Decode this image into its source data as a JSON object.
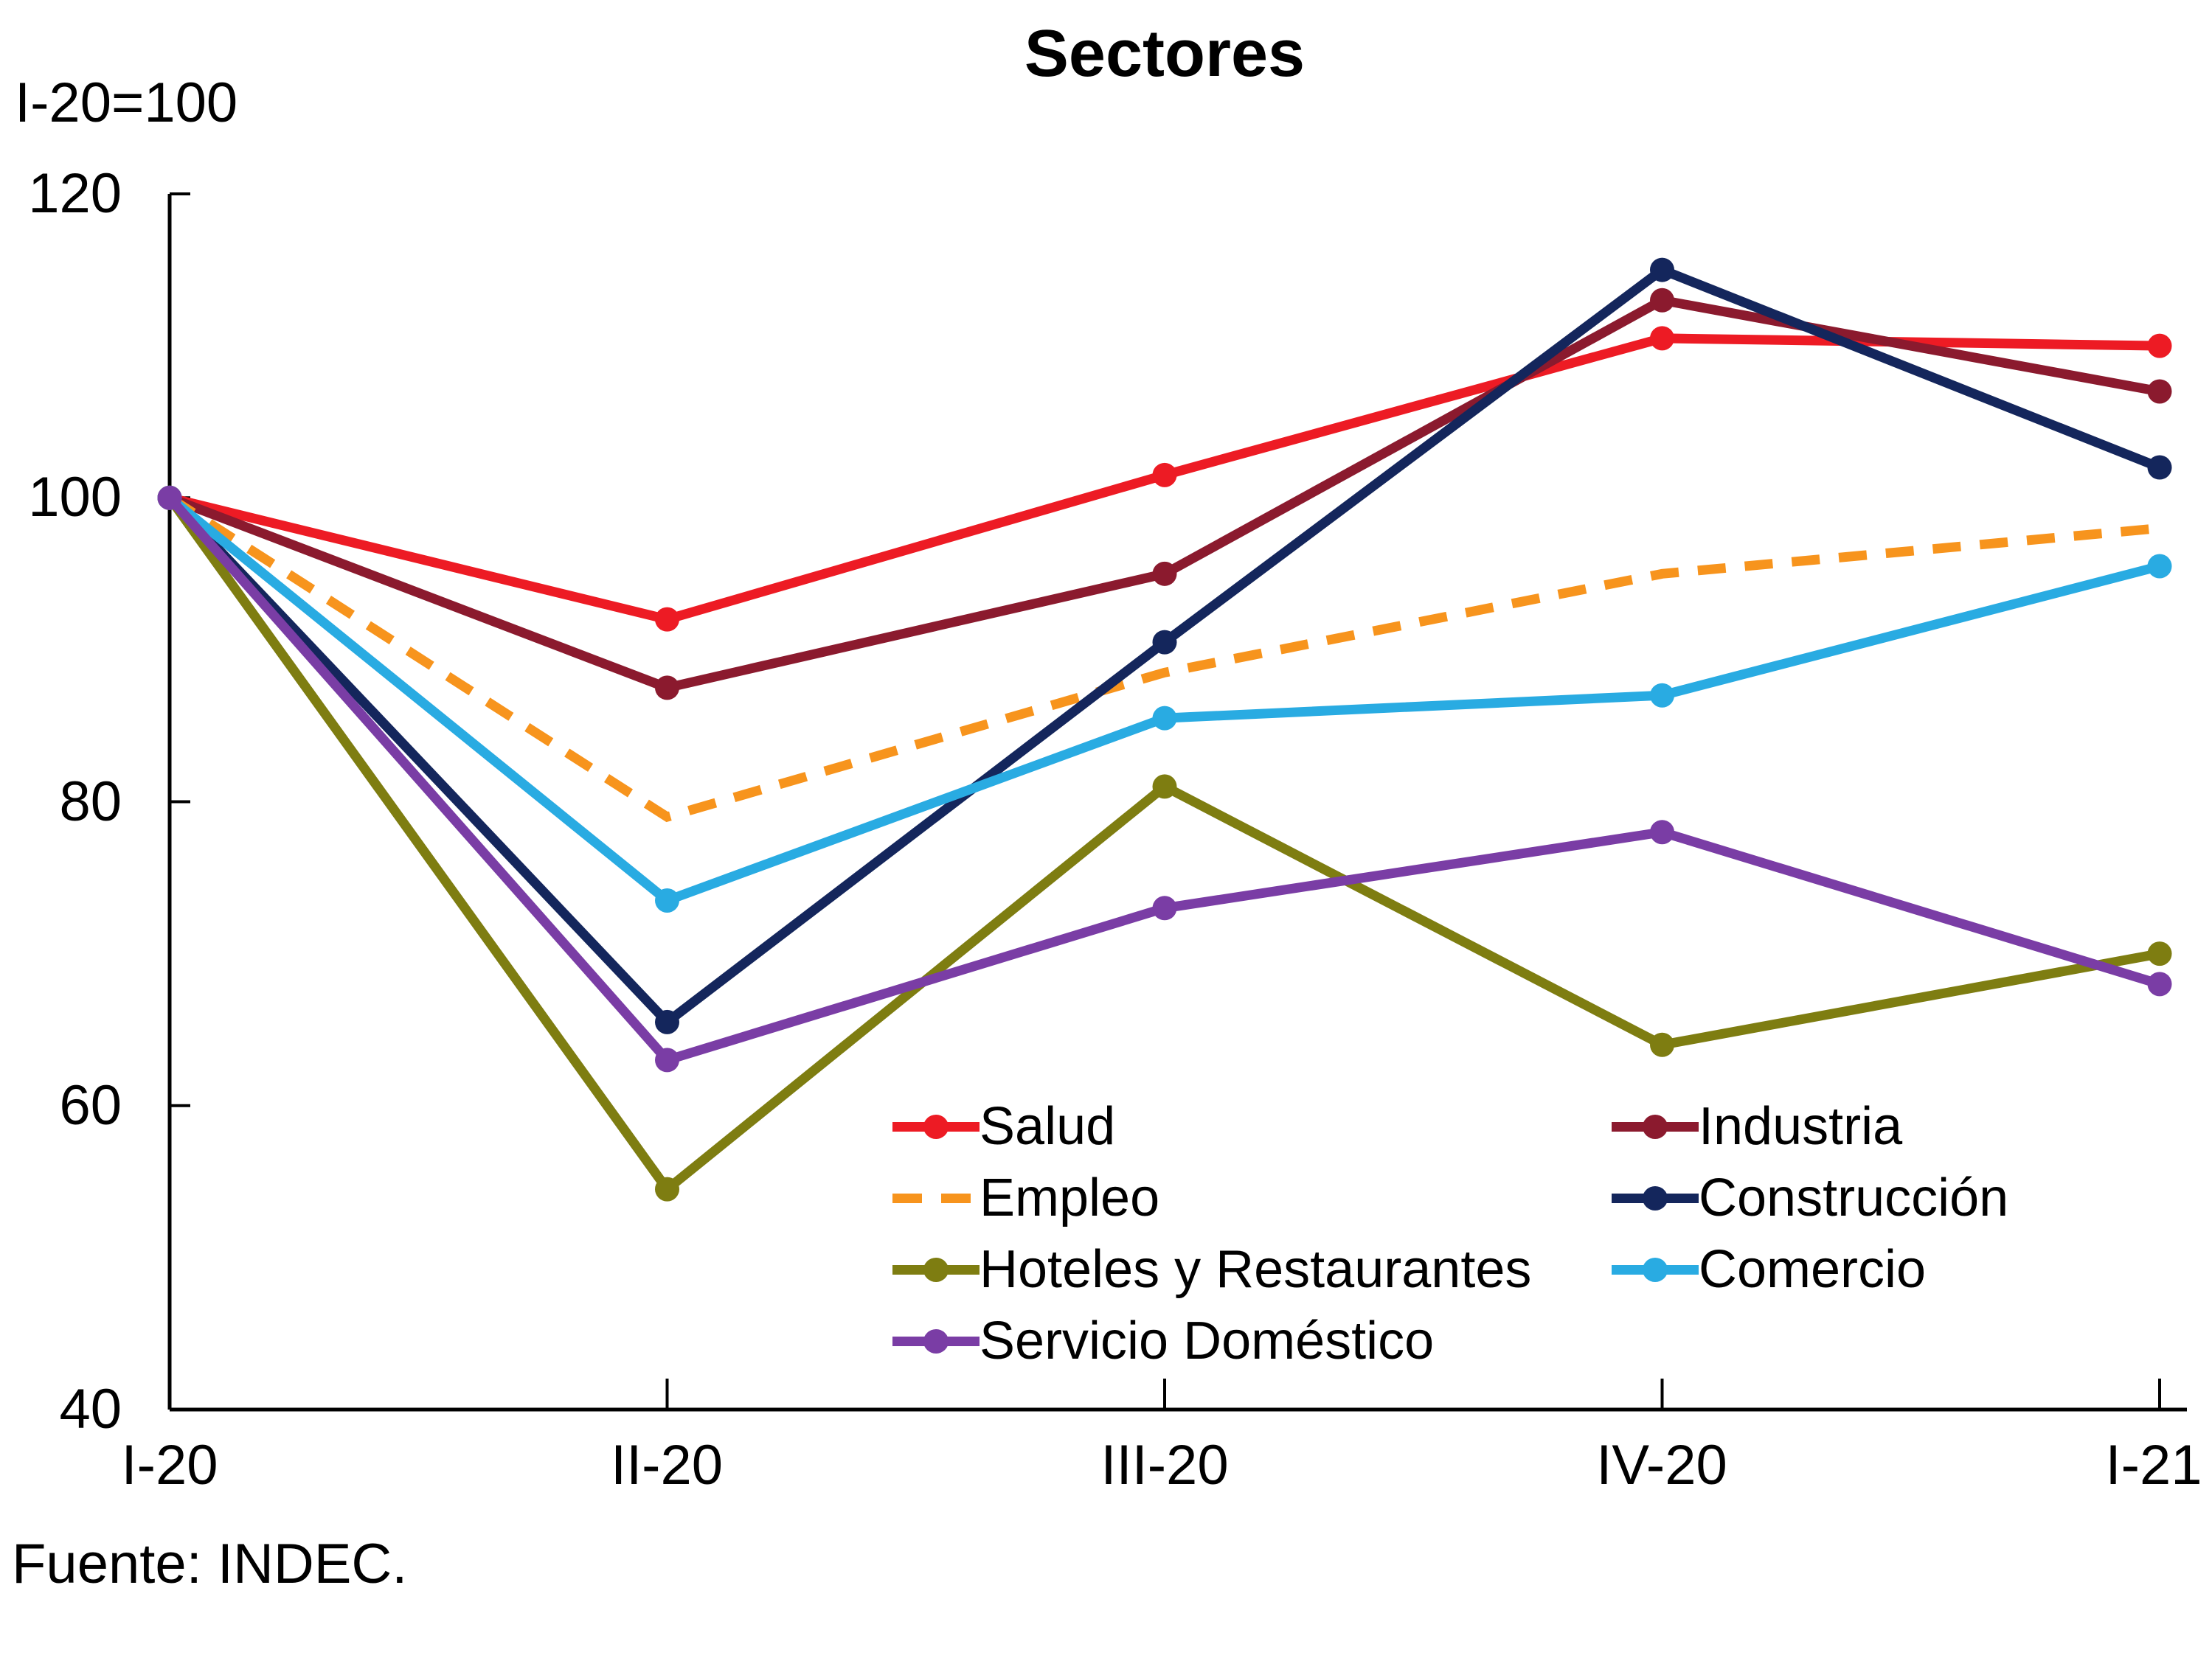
{
  "header": {
    "title": "Sectores",
    "subtitle": "I-20=100"
  },
  "source": "Fuente: INDEC.",
  "chart_data": {
    "type": "line",
    "title": "Sectores",
    "subtitle": "I-20=100",
    "categories": [
      "I-20",
      "II-20",
      "III-20",
      "IV-20",
      "I-21"
    ],
    "series": [
      {
        "name": "Salud",
        "color": "#ED1B24",
        "dashed": false,
        "values": [
          100,
          92,
          101.5,
          110.5,
          110
        ]
      },
      {
        "name": "Industria",
        "color": "#8B1A2E",
        "dashed": false,
        "values": [
          100,
          87.5,
          95,
          113,
          107
        ]
      },
      {
        "name": "Empleo",
        "color": "#F7941D",
        "dashed": true,
        "values": [
          100,
          79,
          88.5,
          95,
          98
        ]
      },
      {
        "name": "Construcción",
        "color": "#14265C",
        "dashed": false,
        "values": [
          100,
          65.5,
          90.5,
          115,
          102
        ]
      },
      {
        "name": "Hoteles y Restaurantes",
        "color": "#7E7D11",
        "dashed": false,
        "values": [
          100,
          54.5,
          81,
          64,
          70
        ]
      },
      {
        "name": "Comercio",
        "color": "#29ABE2",
        "dashed": false,
        "values": [
          100,
          73.5,
          85.5,
          87,
          95.5
        ]
      },
      {
        "name": "Servicio Doméstico",
        "color": "#7A3DA5",
        "dashed": false,
        "values": [
          100,
          63,
          73,
          78,
          68
        ]
      }
    ],
    "ylim": [
      40,
      120
    ],
    "yticks": [
      40,
      60,
      80,
      100,
      120
    ],
    "grid": false,
    "axis_color": "#000000",
    "background": "#FFFFFF",
    "legend_position": "inside-bottom-center",
    "legend_columns": [
      [
        "Salud",
        "Empleo",
        "Hoteles y Restaurantes",
        "Servicio Doméstico"
      ],
      [
        "Industria",
        "Construcción",
        "Comercio"
      ]
    ]
  }
}
